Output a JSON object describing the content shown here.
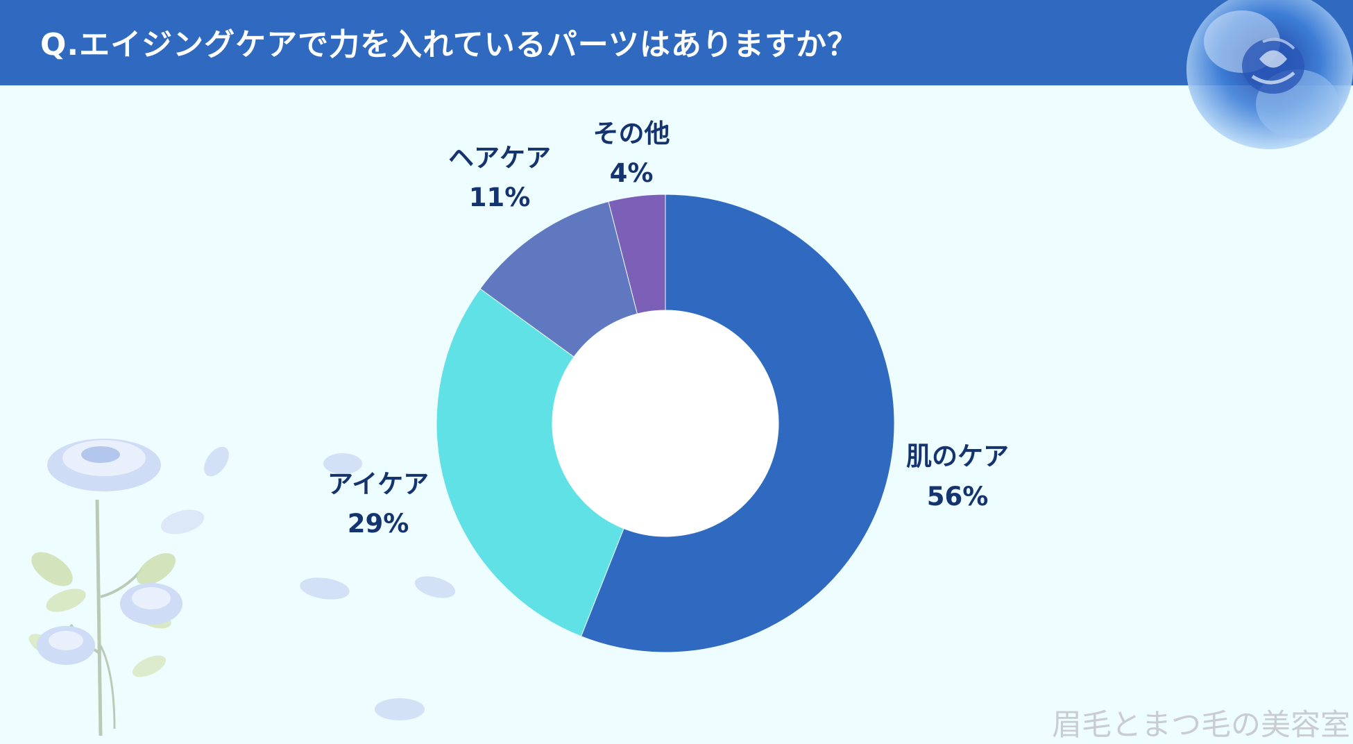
{
  "header": {
    "title": "Q.エイジングケアで力を入れているパーツはありますか？",
    "background_color": "#2f69c0"
  },
  "chart_data": {
    "type": "pie",
    "donut": true,
    "title": "Q.エイジングケアで力を入れているパーツはありますか？",
    "slices": [
      {
        "label": "肌のケア",
        "value": 56,
        "display": "56%",
        "color": "#2f69c0"
      },
      {
        "label": "アイケア",
        "value": 29,
        "display": "29%",
        "color": "#60e1e6"
      },
      {
        "label": "ヘアケア",
        "value": 11,
        "display": "11%",
        "color": "#6078c0"
      },
      {
        "label": "その他",
        "value": 4,
        "display": "4%",
        "color": "#7c5fb6"
      }
    ],
    "legend": "none"
  },
  "watermark": "眉毛とまつ毛の美容室",
  "decorations": [
    "rose-icon",
    "rose-branch-icon",
    "petal-icon"
  ]
}
